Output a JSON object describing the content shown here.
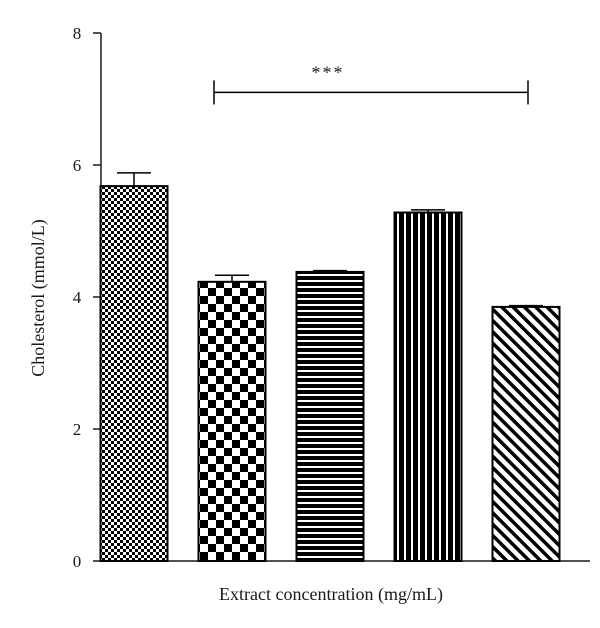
{
  "chart_data": {
    "type": "bar",
    "title": "",
    "xlabel": "Extract concentration (mg/mL)",
    "ylabel": "Cholesterol (mmol/L)",
    "ylim": [
      0,
      8
    ],
    "yticks": [
      {
        "value": 0,
        "label": "0"
      },
      {
        "value": 2,
        "label": "2"
      },
      {
        "value": 4,
        "label": "4"
      },
      {
        "value": 6,
        "label": "6"
      },
      {
        "value": 8,
        "label": "8"
      }
    ],
    "grid": false,
    "bars": [
      {
        "value": 5.68,
        "error": 0.2,
        "pattern": "checker-fine"
      },
      {
        "value": 4.23,
        "error": 0.1,
        "pattern": "checker-coarse"
      },
      {
        "value": 4.38,
        "error": 0.02,
        "pattern": "horizontal-stripes"
      },
      {
        "value": 5.28,
        "error": 0.04,
        "pattern": "vertical-stripes"
      },
      {
        "value": 3.85,
        "error": 0.02,
        "pattern": "diagonal-stripes"
      }
    ],
    "annotation": {
      "label": "***",
      "y": 7.1,
      "from_bar": 1,
      "to_bar": 4
    },
    "colors": {
      "bar_fill": "#ffffff",
      "bar_stroke": "#000000",
      "pattern_ink": "#000000",
      "axis": "#1a1a1a"
    }
  }
}
